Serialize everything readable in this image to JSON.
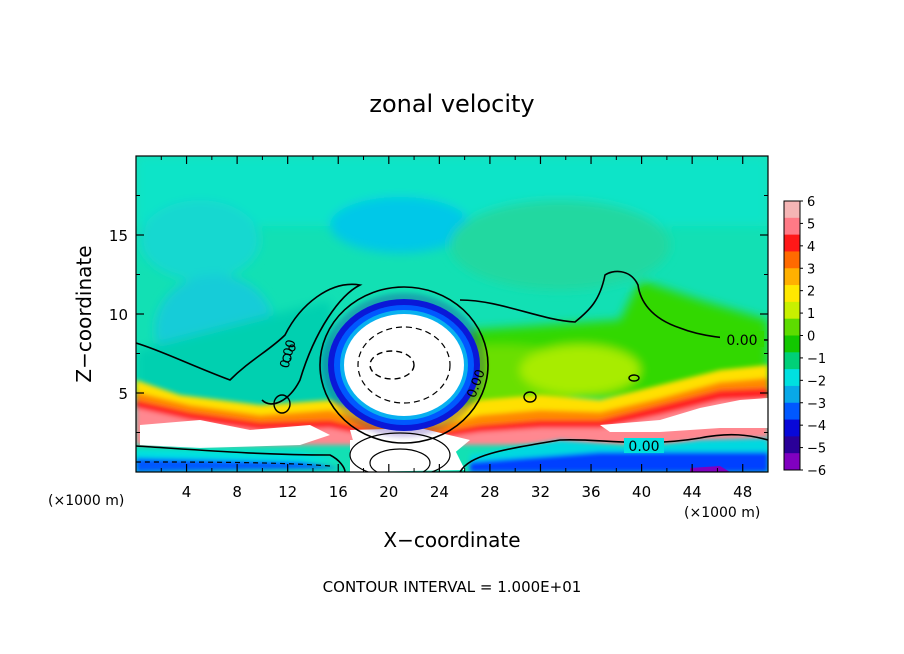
{
  "chart_data": {
    "type": "heatmap",
    "title": "zonal velocity",
    "xlabel": "X−coordinate",
    "ylabel": "Z−coordinate",
    "x_unit_label": "(×1000 m)",
    "x_unit_label_right": "(×1000 m)",
    "xlim": [
      0,
      50
    ],
    "ylim": [
      0,
      20
    ],
    "x_ticks": [
      4,
      8,
      12,
      16,
      20,
      24,
      28,
      32,
      36,
      40,
      44,
      48
    ],
    "y_ticks": [
      5,
      10,
      15
    ],
    "contour_label": "0.00",
    "footnote": "CONTOUR INTERVAL = 1.000E+01",
    "colorbar": {
      "min": -6,
      "max": 6,
      "ticks": [
        6,
        5,
        4,
        3,
        2,
        1,
        0,
        -1,
        -2,
        -3,
        -4,
        -5,
        -6
      ],
      "colors": [
        "#f5b5b5",
        "#ff7a86",
        "#ff1818",
        "#ff6a00",
        "#ffb000",
        "#ffe800",
        "#c8f000",
        "#5ddc00",
        "#12c800",
        "#00d078",
        "#00e0e0",
        "#08a8e8",
        "#0058ff",
        "#0808d8",
        "#2a0098",
        "#8000c0"
      ]
    }
  }
}
